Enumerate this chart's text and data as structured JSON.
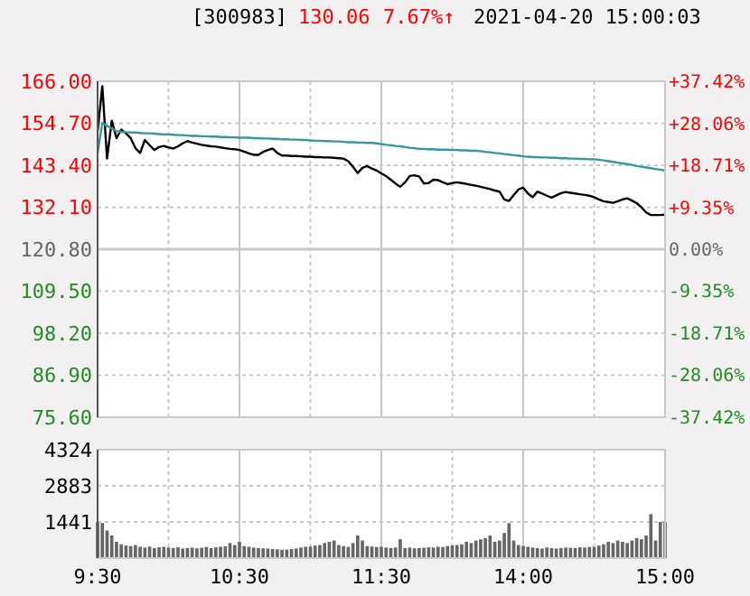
{
  "chart_data": [
    {
      "type": "line",
      "title": "[300983]",
      "annotations": [
        "130.06",
        "7.67%↑",
        "2021-04-20 15:00:03"
      ],
      "categories": [
        null,
        null,
        null,
        null,
        null,
        null,
        null,
        null,
        null,
        null,
        null,
        null,
        null,
        null,
        null,
        null,
        null,
        null,
        null,
        null,
        null,
        null,
        null,
        null,
        null,
        null,
        null,
        null,
        null,
        null,
        null,
        null,
        null,
        null,
        null,
        null,
        null,
        null,
        null,
        null,
        null,
        null,
        null,
        null,
        null,
        null,
        null,
        null,
        null,
        null,
        null,
        null,
        null,
        null,
        null,
        null,
        null,
        null,
        null,
        null,
        null,
        null,
        null,
        null,
        null,
        null,
        null,
        null,
        null,
        null,
        null,
        null,
        null,
        null,
        null,
        null,
        null,
        null,
        null,
        null,
        null,
        null,
        null,
        null,
        null,
        null,
        null,
        null,
        null,
        null,
        null,
        null,
        null,
        null,
        null,
        null,
        null,
        null,
        null,
        null,
        null,
        null,
        null,
        null,
        null,
        null,
        null,
        null,
        null,
        null,
        null,
        null,
        null,
        null,
        null,
        null,
        null,
        null,
        null,
        null,
        null
      ],
      "series": [
        {
          "color": "#000000",
          "values": [
            152.5,
            164.7,
            145.2,
            155.4,
            150.7,
            153.0,
            152.0,
            150.7,
            148.0,
            146.7,
            150.2,
            148.8,
            147.5,
            148.3,
            148.6,
            148.2,
            147.9,
            148.5,
            149.3,
            149.9,
            149.5,
            149.2,
            148.9,
            148.7,
            148.5,
            148.4,
            148.2,
            148.0,
            147.8,
            147.7,
            147.5,
            147.1,
            146.6,
            146.2,
            146.2,
            147.0,
            147.5,
            147.9,
            146.7,
            146.0,
            146.0,
            145.9,
            145.9,
            145.8,
            145.7,
            145.7,
            145.6,
            145.6,
            145.5,
            145.5,
            145.4,
            145.3,
            145.2,
            144.5,
            143.0,
            141.3,
            142.7,
            143.2,
            142.5,
            142.0,
            141.2,
            140.5,
            139.5,
            138.5,
            137.6,
            138.8,
            140.5,
            140.7,
            140.4,
            138.5,
            138.6,
            139.5,
            139.4,
            138.8,
            138.3,
            138.6,
            138.8,
            138.6,
            138.4,
            138.1,
            137.9,
            137.6,
            137.3,
            137.0,
            136.6,
            136.3,
            134.2,
            133.8,
            135.4,
            136.9,
            137.4,
            135.8,
            134.8,
            136.3,
            135.8,
            135.2,
            134.7,
            135.3,
            135.9,
            136.2,
            136.0,
            135.8,
            135.6,
            135.4,
            135.2,
            134.8,
            134.2,
            133.7,
            133.5,
            133.3,
            133.7,
            134.2,
            134.5,
            133.9,
            133.2,
            132.1,
            130.7,
            130.0,
            130.0,
            130.0,
            130.1
          ]
        },
        {
          "color": "#339999",
          "values": [
            146.7,
            154.8,
            154.0,
            153.3,
            152.6,
            152.4,
            152.3,
            152.2,
            152.2,
            152.1,
            152.0,
            152.0,
            151.9,
            151.8,
            151.7,
            151.7,
            151.6,
            151.5,
            151.5,
            151.4,
            151.3,
            151.3,
            151.2,
            151.2,
            151.1,
            151.1,
            151.0,
            151.0,
            150.9,
            150.9,
            150.8,
            150.8,
            150.8,
            150.7,
            150.7,
            150.6,
            150.6,
            150.5,
            150.5,
            150.4,
            150.4,
            150.3,
            150.3,
            150.2,
            150.2,
            150.1,
            150.0,
            150.0,
            149.9,
            149.9,
            149.8,
            149.8,
            149.7,
            149.6,
            149.6,
            149.5,
            149.5,
            149.4,
            149.4,
            149.3,
            149.1,
            148.9,
            148.8,
            148.6,
            148.5,
            148.3,
            148.1,
            148.0,
            147.8,
            147.8,
            147.7,
            147.7,
            147.6,
            147.6,
            147.6,
            147.5,
            147.5,
            147.4,
            147.4,
            147.3,
            147.3,
            147.2,
            147.0,
            146.9,
            146.7,
            146.6,
            146.4,
            146.3,
            146.1,
            146.0,
            145.8,
            145.7,
            145.6,
            145.6,
            145.5,
            145.5,
            145.4,
            145.4,
            145.3,
            145.3,
            145.2,
            145.2,
            145.1,
            145.1,
            145.0,
            145.0,
            144.9,
            144.7,
            144.5,
            144.3,
            144.1,
            143.9,
            143.7,
            143.5,
            143.2,
            143.0,
            142.8,
            142.6,
            142.4,
            142.2,
            142.0
          ]
        }
      ],
      "ylim": [
        75.6,
        166
      ],
      "yticks": [
        {
          "value": 75.6,
          "label": "75.60"
        },
        {
          "value": 86.9,
          "label": "86.90"
        },
        {
          "value": 98.2,
          "label": "98.20"
        },
        {
          "value": 109.5,
          "label": "109.50"
        },
        {
          "value": 120.8,
          "label": "120.80"
        },
        {
          "value": 132.1,
          "label": "132.10"
        },
        {
          "value": 143.4,
          "label": "143.40"
        },
        {
          "value": 154.7,
          "label": "154.70"
        },
        {
          "value": 166,
          "label": "166.00"
        }
      ],
      "y2lim": [
        -37.42,
        37.42
      ],
      "y2ticks": [
        {
          "value": -37.42,
          "label": "-37.42%"
        },
        {
          "value": -28.06,
          "label": "-28.06%"
        },
        {
          "value": -18.71,
          "label": "-18.71%"
        },
        {
          "value": -9.35,
          "label": "-9.35%"
        },
        {
          "value": 0,
          "label": "0.00%"
        },
        {
          "value": 9.35,
          "label": "+9.35%"
        },
        {
          "value": 18.71,
          "label": "+18.71%"
        },
        {
          "value": 28.06,
          "label": "+28.06%"
        },
        {
          "value": 37.42,
          "label": "+37.42%"
        }
      ],
      "ref_lines": [
        {
          "axis": "y",
          "value": 120.8,
          "color": "#c8c8c8"
        }
      ],
      "grid": true,
      "tick_labels": "y",
      "line_style": "solid",
      "marker": "none"
    },
    {
      "type": "bar",
      "color": "#666666",
      "categories": [
        "9:30",
        null,
        null,
        null,
        null,
        null,
        null,
        null,
        null,
        null,
        null,
        null,
        null,
        null,
        null,
        null,
        null,
        null,
        null,
        null,
        null,
        null,
        null,
        null,
        null,
        null,
        null,
        null,
        null,
        null,
        "10:30",
        null,
        null,
        null,
        null,
        null,
        null,
        null,
        null,
        null,
        null,
        null,
        null,
        null,
        null,
        null,
        null,
        null,
        null,
        null,
        null,
        null,
        null,
        null,
        null,
        null,
        null,
        null,
        null,
        null,
        "11:30",
        null,
        null,
        null,
        null,
        null,
        null,
        null,
        null,
        null,
        null,
        null,
        null,
        null,
        null,
        null,
        null,
        null,
        null,
        null,
        null,
        null,
        null,
        null,
        null,
        null,
        null,
        null,
        null,
        null,
        "14:00",
        null,
        null,
        null,
        null,
        null,
        null,
        null,
        null,
        null,
        null,
        null,
        null,
        null,
        null,
        null,
        null,
        null,
        null,
        null,
        null,
        null,
        null,
        null,
        null,
        null,
        null,
        null,
        null,
        null,
        "15:00"
      ],
      "values": [
        1440,
        1400,
        1100,
        900,
        650,
        550,
        500,
        480,
        520,
        450,
        420,
        460,
        400,
        430,
        450,
        420,
        400,
        430,
        380,
        400,
        420,
        390,
        410,
        440,
        400,
        430,
        450,
        470,
        600,
        520,
        650,
        480,
        450,
        420,
        400,
        390,
        380,
        360,
        350,
        330,
        340,
        360,
        380,
        420,
        450,
        460,
        500,
        520,
        600,
        650,
        700,
        520,
        480,
        450,
        600,
        900,
        700,
        480,
        460,
        440,
        450,
        420,
        400,
        420,
        750,
        400,
        420,
        390,
        400,
        410,
        430,
        420,
        450,
        440,
        480,
        500,
        520,
        550,
        650,
        600,
        700,
        750,
        800,
        900,
        650,
        700,
        1000,
        1390,
        700,
        520,
        480,
        450,
        420,
        400,
        380,
        420,
        400,
        380,
        400,
        420,
        410,
        400,
        430,
        420,
        440,
        450,
        500,
        550,
        650,
        600,
        700,
        650,
        600,
        700,
        800,
        750,
        900,
        1750,
        700,
        1440,
        1440
      ],
      "ylim": [
        0,
        4324
      ],
      "yticks": [
        1441,
        2883,
        4324
      ],
      "grid": true
    }
  ]
}
